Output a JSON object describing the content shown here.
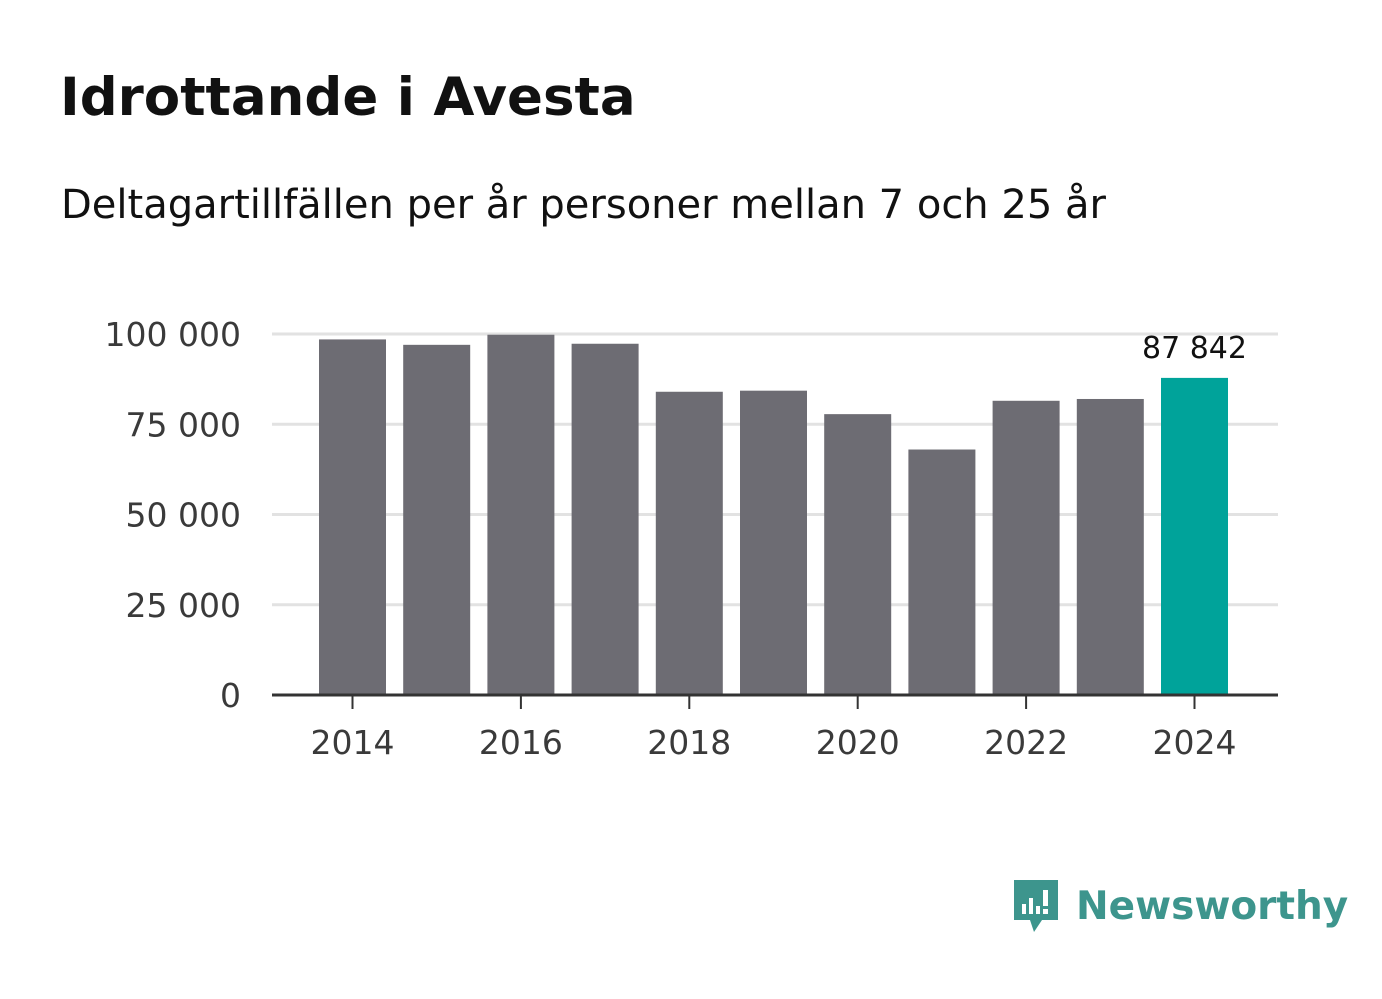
{
  "title": "Idrottande i Avesta",
  "subtitle": "Deltagartillfällen per år personer mellan 7 och 25 år",
  "brand": {
    "name": "Newsworthy",
    "color": "#3d958d"
  },
  "colors": {
    "bar": "#6d6c73",
    "highlight": "#00a39a",
    "grid": "#e2e2e2",
    "axis": "#333333"
  },
  "chart_data": {
    "type": "bar",
    "title": "Idrottande i Avesta",
    "subtitle": "Deltagartillfällen per år personer mellan 7 och 25 år",
    "xlabel": "",
    "ylabel": "",
    "categories": [
      "2014",
      "2015",
      "2016",
      "2017",
      "2018",
      "2019",
      "2020",
      "2021",
      "2022",
      "2023",
      "2024"
    ],
    "values": [
      98500,
      97000,
      99800,
      97300,
      84000,
      84300,
      77800,
      68000,
      81500,
      82000,
      87842
    ],
    "ylim": [
      0,
      100000
    ],
    "yticks": [
      0,
      25000,
      50000,
      75000,
      100000
    ],
    "ytick_labels": [
      "0",
      "25 000",
      "50 000",
      "75 000",
      "100 000"
    ],
    "xtick_labels": [
      "2014",
      "2016",
      "2018",
      "2020",
      "2022",
      "2024"
    ],
    "highlight_index": 10,
    "annotation": "87 842",
    "grid": true
  }
}
